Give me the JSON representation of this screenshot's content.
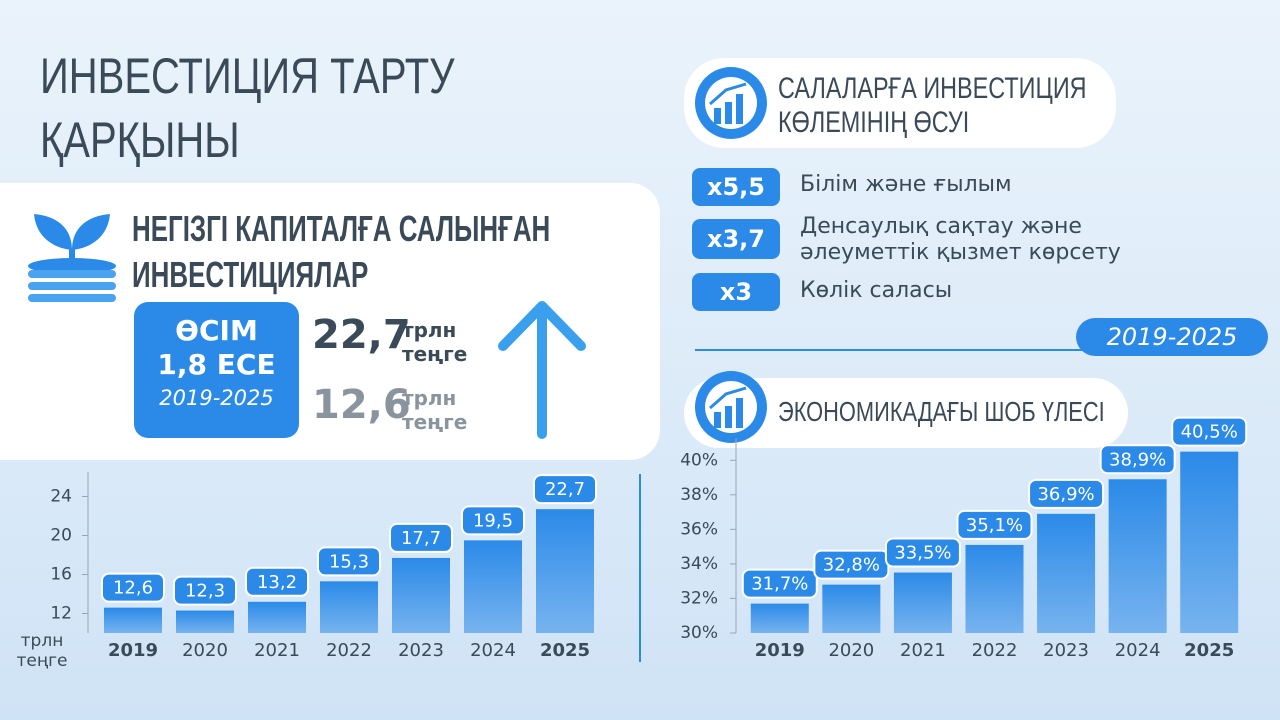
{
  "title": [
    "ИНВЕСТИЦИЯ ТАРТУ",
    "ҚАРҚЫНЫ"
  ],
  "capital": {
    "title": [
      "НЕГІЗГІ КАПИТАЛҒА САЛЫНҒАН",
      "ИНВЕСТИЦИЯЛАР"
    ],
    "growth": [
      "ӨСІМ",
      "1,8 ЕСЕ"
    ],
    "period": "2019-2025",
    "amounts": [
      {
        "value": "22,7",
        "unit": [
          "трлн",
          "теңге"
        ]
      },
      {
        "value": "12,6",
        "unit": [
          "трлн",
          "теңге"
        ]
      }
    ]
  },
  "sectors": {
    "title": [
      "САЛАЛАРҒА ИНВЕСТИЦИЯ",
      "КӨЛЕМІНІҢ ӨСУІ"
    ],
    "items": [
      {
        "factor": "x5,5",
        "label": [
          "Білім және ғылым"
        ]
      },
      {
        "factor": "x3,7",
        "label": [
          "Денсаулық сақтау және",
          "әлеуметтік қызмет көрсету"
        ]
      },
      {
        "factor": "x3",
        "label": [
          "Көлік саласы"
        ]
      }
    ],
    "period": "2019-2025"
  },
  "sme_title": "ЭКОНОМИКАДАҒЫ ШОБ ҮЛЕСІ",
  "chart_data": [
    {
      "type": "bar",
      "y_label": [
        "трлн",
        "теңге"
      ],
      "categories": [
        "2019",
        "2020",
        "2021",
        "2022",
        "2023",
        "2024",
        "2025"
      ],
      "values": [
        12.6,
        12.3,
        13.2,
        15.3,
        17.7,
        19.5,
        22.7
      ],
      "value_labels": [
        "12,6",
        "12,3",
        "13,2",
        "15,3",
        "17,7",
        "19,5",
        "22,7"
      ],
      "color": "#2b8ae8",
      "ylim": [
        10,
        26
      ],
      "yticks": [
        12,
        16,
        20,
        24
      ]
    },
    {
      "type": "bar",
      "categories": [
        "2019",
        "2020",
        "2021",
        "2022",
        "2023",
        "2024",
        "2025"
      ],
      "values": [
        31.7,
        32.8,
        33.5,
        35.1,
        36.9,
        38.9,
        40.5
      ],
      "value_labels": [
        "31,7%",
        "32,8%",
        "33,5%",
        "35,1%",
        "36,9%",
        "38,9%",
        "40,5%"
      ],
      "color": "#2b8ae8",
      "ylim": [
        30,
        41
      ],
      "yticks": [
        {
          "value": 30,
          "label": "30%"
        },
        {
          "value": 32,
          "label": "32%"
        },
        {
          "value": 34,
          "label": "34%"
        },
        {
          "value": 36,
          "label": "36%"
        },
        {
          "value": 38,
          "label": "38%"
        },
        {
          "value": 40,
          "label": "40%"
        }
      ]
    }
  ]
}
